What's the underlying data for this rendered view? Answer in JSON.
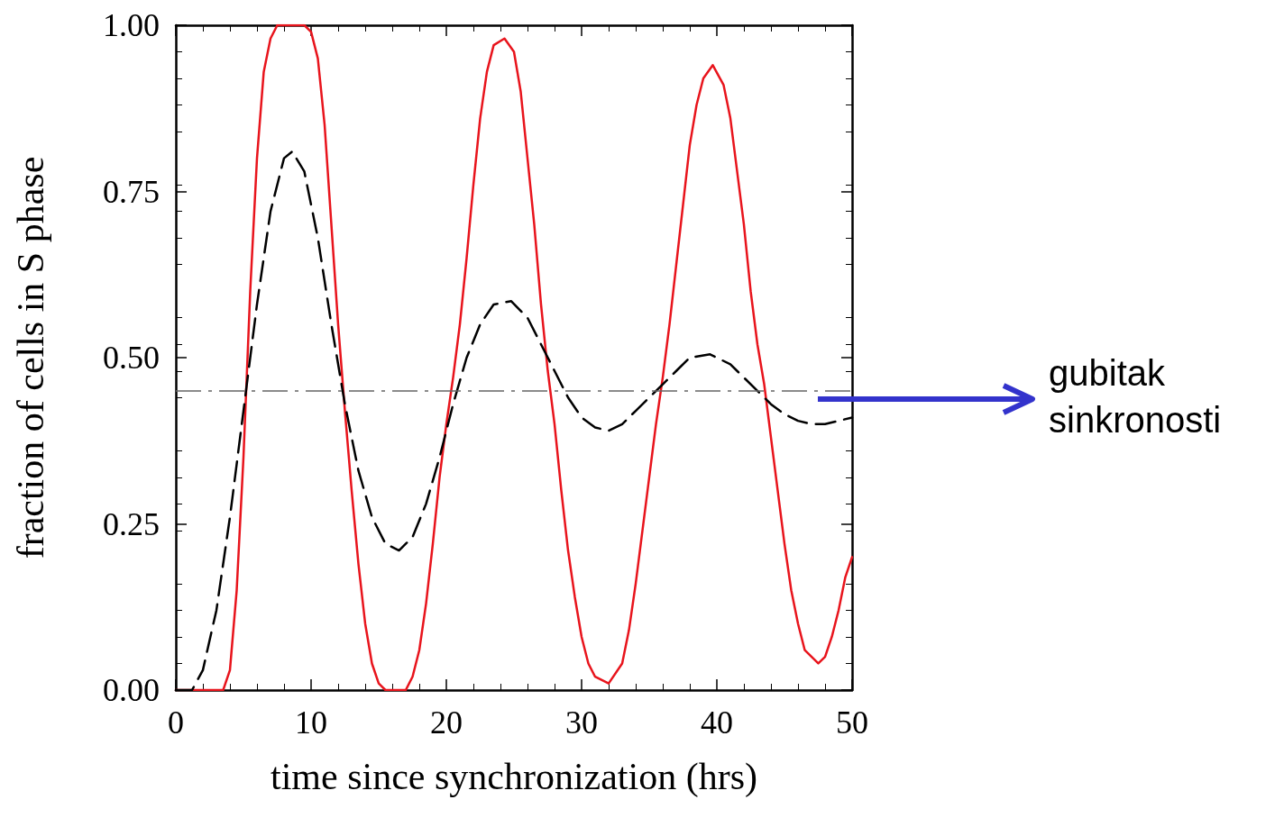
{
  "chart_data": {
    "type": "line",
    "xlabel": "time since synchronization (hrs)",
    "ylabel": "fraction of cells in S phase",
    "xlim": [
      0,
      50
    ],
    "xticks": [
      0,
      10,
      20,
      30,
      40,
      50
    ],
    "ylim": [
      0,
      1
    ],
    "yticks": [
      {
        "value": 0,
        "label": "0.00"
      },
      {
        "value": 0.25,
        "label": "0.25"
      },
      {
        "value": 0.5,
        "label": "0.50"
      },
      {
        "value": 0.75,
        "label": "0.75"
      },
      {
        "value": 1,
        "label": "1.00"
      }
    ],
    "marker": "none",
    "series": [
      {
        "color": "#e8141c",
        "line_style": "solid",
        "x": [
          0,
          3.5,
          4,
          4.5,
          5,
          5.5,
          6,
          6.5,
          7,
          7.5,
          9.5,
          10,
          10.5,
          11,
          11.5,
          12,
          12.5,
          13,
          13.5,
          14,
          14.5,
          15,
          15.5,
          17,
          17.5,
          18,
          18.5,
          19,
          19.5,
          20,
          20.5,
          21,
          21.5,
          22,
          22.5,
          23,
          23.5,
          24.3,
          25,
          25.5,
          26,
          26.5,
          27,
          27.5,
          28,
          28.5,
          29,
          29.5,
          30,
          30.5,
          31,
          32,
          33,
          33.5,
          34,
          34.5,
          35,
          35.5,
          36,
          36.5,
          37,
          37.5,
          38,
          38.5,
          39,
          39.7,
          40.5,
          41,
          41.5,
          42,
          42.5,
          43,
          43.5,
          44,
          44.5,
          45,
          45.5,
          46,
          46.5,
          47.5,
          48,
          48.5,
          49,
          49.5,
          50
        ],
        "values": [
          0,
          0,
          0.03,
          0.15,
          0.35,
          0.6,
          0.8,
          0.93,
          0.98,
          1,
          1,
          0.99,
          0.95,
          0.85,
          0.7,
          0.55,
          0.42,
          0.3,
          0.19,
          0.1,
          0.04,
          0.01,
          0,
          0,
          0.02,
          0.06,
          0.13,
          0.22,
          0.32,
          0.4,
          0.47,
          0.55,
          0.65,
          0.76,
          0.86,
          0.93,
          0.97,
          0.98,
          0.96,
          0.9,
          0.8,
          0.7,
          0.58,
          0.48,
          0.4,
          0.3,
          0.21,
          0.14,
          0.08,
          0.04,
          0.02,
          0.01,
          0.04,
          0.09,
          0.16,
          0.24,
          0.32,
          0.4,
          0.47,
          0.55,
          0.64,
          0.73,
          0.82,
          0.88,
          0.92,
          0.94,
          0.91,
          0.86,
          0.78,
          0.7,
          0.6,
          0.52,
          0.46,
          0.38,
          0.3,
          0.22,
          0.15,
          0.1,
          0.06,
          0.04,
          0.05,
          0.08,
          0.12,
          0.17,
          0.2
        ]
      },
      {
        "color": "#000000",
        "line_style": "dashed",
        "x": [
          0,
          1.2,
          2,
          3,
          4,
          5,
          6,
          7,
          8,
          8.6,
          9.5,
          10.5,
          11.5,
          12.5,
          13.5,
          14.5,
          15.5,
          16.5,
          17.5,
          18.5,
          19.5,
          20.5,
          21.5,
          22.5,
          23.5,
          24.8,
          26,
          27,
          28,
          29,
          30,
          31,
          32,
          33,
          34,
          35,
          36,
          37,
          38,
          39.5,
          41,
          42,
          43,
          44,
          45,
          46,
          47,
          48,
          49,
          50
        ],
        "values": [
          0,
          0,
          0.03,
          0.12,
          0.26,
          0.42,
          0.58,
          0.72,
          0.8,
          0.81,
          0.78,
          0.68,
          0.55,
          0.43,
          0.33,
          0.26,
          0.22,
          0.21,
          0.23,
          0.28,
          0.35,
          0.43,
          0.5,
          0.55,
          0.58,
          0.585,
          0.56,
          0.52,
          0.48,
          0.44,
          0.41,
          0.395,
          0.39,
          0.4,
          0.42,
          0.44,
          0.46,
          0.48,
          0.5,
          0.505,
          0.49,
          0.47,
          0.45,
          0.43,
          0.415,
          0.405,
          0.4,
          0.4,
          0.405,
          0.41
        ]
      }
    ],
    "ref_lines": [
      {
        "axis": "y",
        "value": 0.45,
        "color": "#666666"
      }
    ],
    "annotations": [
      "gubitak sinkronosti"
    ]
  }
}
